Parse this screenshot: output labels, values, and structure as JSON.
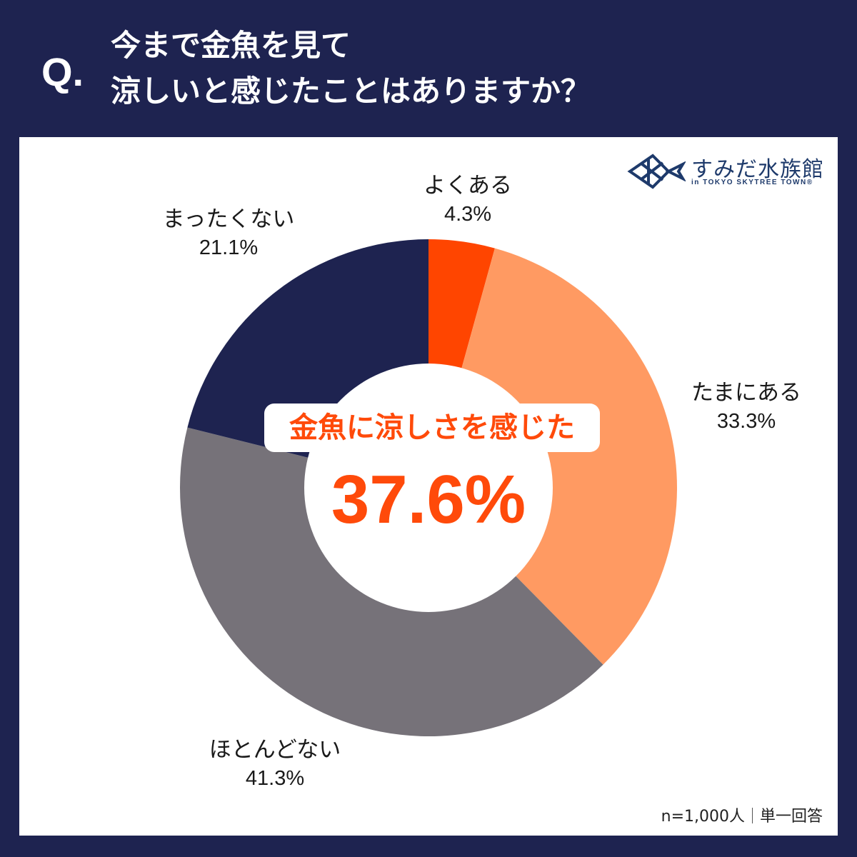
{
  "header": {
    "q_mark": "Q.",
    "title_line1": "今まで金魚を見て",
    "title_line2": "涼しいと感じたことはありますか？"
  },
  "logo": {
    "name": "すみだ水族館",
    "sub": "in TOKYO SKYTREE TOWN®"
  },
  "center": {
    "label": "金魚に涼しさを感じた",
    "value": "37.6%"
  },
  "labels": [
    {
      "name": "よくある",
      "pct": "4.3%"
    },
    {
      "name": "たまにある",
      "pct": "33.3%"
    },
    {
      "name": "ほとんどない",
      "pct": "41.3%"
    },
    {
      "name": "まったくない",
      "pct": "21.1%"
    }
  ],
  "footer": {
    "n": "n=1,000人",
    "type": "単一回答"
  },
  "colors": {
    "background": "#1e2350",
    "often": "#ff4500",
    "sometimes": "#ff9a62",
    "rarely": "#767279",
    "never": "#1e2350",
    "accent": "#ff4a0a"
  },
  "chart_data": {
    "type": "pie",
    "subtype": "donut",
    "title": "今まで金魚を見て涼しいと感じたことはありますか？",
    "categories": [
      "よくある",
      "たまにある",
      "ほとんどない",
      "まったくない"
    ],
    "values": [
      4.3,
      33.3,
      41.3,
      21.1
    ],
    "colors": [
      "#ff4500",
      "#ff9a62",
      "#767279",
      "#1e2350"
    ],
    "start_angle": "12 o'clock, clockwise",
    "center_annotation": {
      "label": "金魚に涼しさを感じた",
      "value": 37.6
    },
    "sample": "n=1,000人",
    "answer_type": "単一回答",
    "legend": "none (direct labels)"
  }
}
